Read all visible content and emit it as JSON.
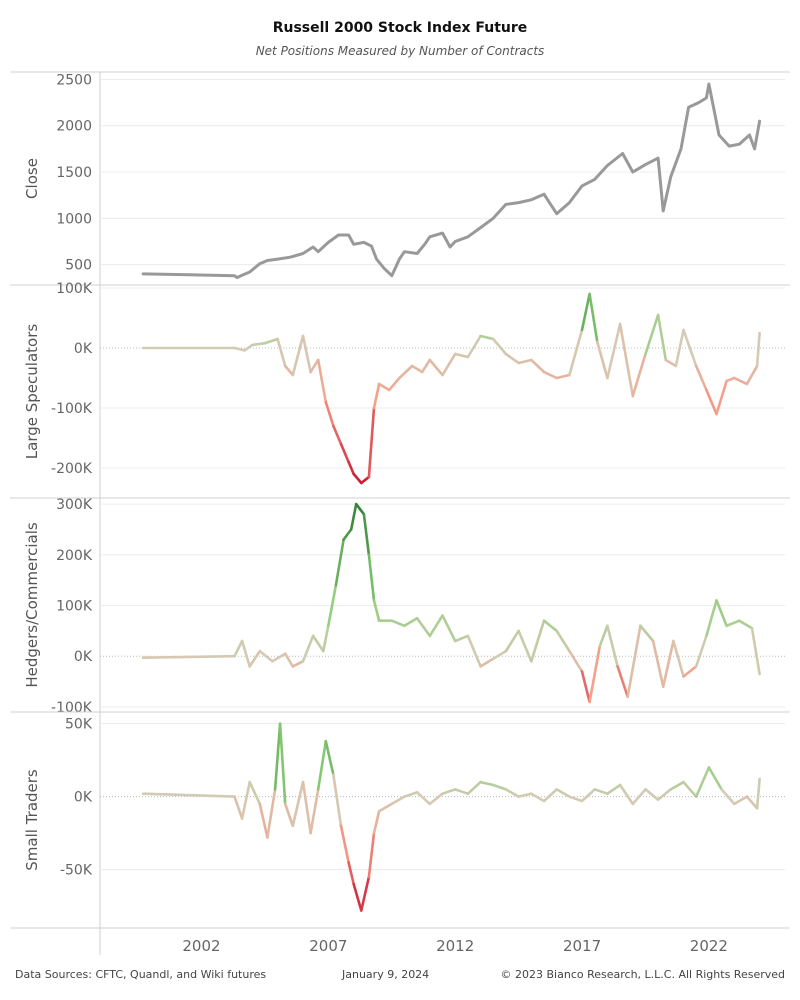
{
  "header": {
    "title": "Russell 2000 Stock Index Future",
    "subtitle": "Net Positions Measured by Number of Contracts"
  },
  "footer": {
    "sources": "Data Sources: CFTC, Quandl, and Wiki futures",
    "date": "January 9, 2024",
    "copyright": "© 2023 Bianco Research, L.L.C. All Rights Reserved"
  },
  "colors": {
    "close_line": "#999999",
    "positive_strong": "#2e7d32",
    "positive_light": "#8fd07a",
    "neutral": "#d4cbb5",
    "negative_light": "#f5a08a",
    "negative_strong": "#c8102e"
  },
  "chart_data": {
    "type": "line",
    "x_ticks": [
      2002,
      2007,
      2012,
      2017,
      2022
    ],
    "xlim": [
      1998,
      2025
    ],
    "panels": [
      {
        "ylabel": "Close",
        "ylim": [
          280,
          2580
        ],
        "yticks": [
          500,
          1000,
          1500,
          2000,
          2500
        ],
        "ytick_labels": [
          "500",
          "1000",
          "1500",
          "2000",
          "2500"
        ],
        "color_mode": "solid",
        "points": [
          [
            1999.7,
            400
          ],
          [
            2001.5,
            390
          ],
          [
            2003.3,
            380
          ],
          [
            2003.4,
            360
          ],
          [
            2003.6,
            385
          ],
          [
            2003.9,
            420
          ],
          [
            2004.3,
            510
          ],
          [
            2004.6,
            545
          ],
          [
            2005.0,
            560
          ],
          [
            2005.5,
            580
          ],
          [
            2006.0,
            620
          ],
          [
            2006.4,
            690
          ],
          [
            2006.6,
            640
          ],
          [
            2007.0,
            740
          ],
          [
            2007.4,
            820
          ],
          [
            2007.8,
            820
          ],
          [
            2008.0,
            720
          ],
          [
            2008.4,
            740
          ],
          [
            2008.7,
            700
          ],
          [
            2008.9,
            560
          ],
          [
            2009.2,
            460
          ],
          [
            2009.5,
            380
          ],
          [
            2009.8,
            560
          ],
          [
            2010.0,
            640
          ],
          [
            2010.5,
            620
          ],
          [
            2010.8,
            720
          ],
          [
            2011.0,
            800
          ],
          [
            2011.5,
            840
          ],
          [
            2011.8,
            690
          ],
          [
            2012.0,
            750
          ],
          [
            2012.5,
            800
          ],
          [
            2013.0,
            900
          ],
          [
            2013.5,
            1000
          ],
          [
            2014.0,
            1150
          ],
          [
            2014.5,
            1170
          ],
          [
            2015.0,
            1200
          ],
          [
            2015.5,
            1260
          ],
          [
            2016.0,
            1050
          ],
          [
            2016.5,
            1170
          ],
          [
            2017.0,
            1350
          ],
          [
            2017.5,
            1420
          ],
          [
            2018.0,
            1570
          ],
          [
            2018.6,
            1700
          ],
          [
            2019.0,
            1500
          ],
          [
            2019.5,
            1580
          ],
          [
            2020.0,
            1650
          ],
          [
            2020.2,
            1080
          ],
          [
            2020.5,
            1450
          ],
          [
            2020.9,
            1750
          ],
          [
            2021.2,
            2200
          ],
          [
            2021.6,
            2250
          ],
          [
            2021.9,
            2300
          ],
          [
            2022.0,
            2450
          ],
          [
            2022.4,
            1900
          ],
          [
            2022.8,
            1780
          ],
          [
            2023.2,
            1800
          ],
          [
            2023.6,
            1900
          ],
          [
            2023.8,
            1750
          ],
          [
            2024.0,
            2050
          ]
        ]
      },
      {
        "ylabel": "Large Speculators",
        "ylim": [
          -250000,
          105000
        ],
        "yticks": [
          100000,
          0,
          -100000,
          -200000
        ],
        "ytick_labels": [
          "100K",
          "0K",
          "-100K",
          "-200K"
        ],
        "color_mode": "diverging",
        "color_range": [
          -235000,
          100000
        ],
        "points": [
          [
            1999.7,
            0
          ],
          [
            2003.3,
            0
          ],
          [
            2003.7,
            -4000
          ],
          [
            2004.0,
            5000
          ],
          [
            2004.5,
            8000
          ],
          [
            2005.0,
            15000
          ],
          [
            2005.3,
            -30000
          ],
          [
            2005.6,
            -45000
          ],
          [
            2006.0,
            20000
          ],
          [
            2006.3,
            -40000
          ],
          [
            2006.6,
            -20000
          ],
          [
            2006.9,
            -90000
          ],
          [
            2007.2,
            -130000
          ],
          [
            2007.5,
            -160000
          ],
          [
            2007.8,
            -190000
          ],
          [
            2008.0,
            -210000
          ],
          [
            2008.3,
            -225000
          ],
          [
            2008.6,
            -215000
          ],
          [
            2008.8,
            -100000
          ],
          [
            2009.0,
            -60000
          ],
          [
            2009.4,
            -70000
          ],
          [
            2009.8,
            -50000
          ],
          [
            2010.3,
            -30000
          ],
          [
            2010.7,
            -40000
          ],
          [
            2011.0,
            -20000
          ],
          [
            2011.5,
            -45000
          ],
          [
            2012.0,
            -10000
          ],
          [
            2012.5,
            -15000
          ],
          [
            2013.0,
            20000
          ],
          [
            2013.5,
            15000
          ],
          [
            2014.0,
            -10000
          ],
          [
            2014.5,
            -25000
          ],
          [
            2015.0,
            -20000
          ],
          [
            2015.5,
            -40000
          ],
          [
            2016.0,
            -50000
          ],
          [
            2016.5,
            -45000
          ],
          [
            2017.0,
            30000
          ],
          [
            2017.3,
            90000
          ],
          [
            2017.6,
            10000
          ],
          [
            2018.0,
            -50000
          ],
          [
            2018.5,
            40000
          ],
          [
            2019.0,
            -80000
          ],
          [
            2019.5,
            -10000
          ],
          [
            2020.0,
            55000
          ],
          [
            2020.3,
            -20000
          ],
          [
            2020.7,
            -30000
          ],
          [
            2021.0,
            30000
          ],
          [
            2021.5,
            -30000
          ],
          [
            2021.9,
            -70000
          ],
          [
            2022.3,
            -110000
          ],
          [
            2022.7,
            -55000
          ],
          [
            2023.0,
            -50000
          ],
          [
            2023.5,
            -60000
          ],
          [
            2023.9,
            -30000
          ],
          [
            2024.0,
            25000
          ]
        ]
      },
      {
        "ylabel": "Hedgers/Commercials",
        "ylim": [
          -110000,
          312000
        ],
        "yticks": [
          300000,
          200000,
          100000,
          0,
          -100000
        ],
        "ytick_labels": [
          "300K",
          "200K",
          "100K",
          "0K",
          "-100K"
        ],
        "color_mode": "diverging",
        "color_range": [
          -100000,
          305000
        ],
        "points": [
          [
            1999.7,
            -3000
          ],
          [
            2003.3,
            0
          ],
          [
            2003.6,
            30000
          ],
          [
            2003.9,
            -20000
          ],
          [
            2004.3,
            10000
          ],
          [
            2004.8,
            -10000
          ],
          [
            2005.3,
            5000
          ],
          [
            2005.6,
            -20000
          ],
          [
            2006.0,
            -10000
          ],
          [
            2006.4,
            40000
          ],
          [
            2006.8,
            10000
          ],
          [
            2007.0,
            60000
          ],
          [
            2007.3,
            140000
          ],
          [
            2007.6,
            230000
          ],
          [
            2007.9,
            250000
          ],
          [
            2008.1,
            300000
          ],
          [
            2008.4,
            280000
          ],
          [
            2008.6,
            200000
          ],
          [
            2008.8,
            110000
          ],
          [
            2009.0,
            70000
          ],
          [
            2009.5,
            70000
          ],
          [
            2010.0,
            60000
          ],
          [
            2010.5,
            75000
          ],
          [
            2011.0,
            40000
          ],
          [
            2011.5,
            80000
          ],
          [
            2012.0,
            30000
          ],
          [
            2012.5,
            40000
          ],
          [
            2013.0,
            -20000
          ],
          [
            2013.5,
            -5000
          ],
          [
            2014.0,
            10000
          ],
          [
            2014.5,
            50000
          ],
          [
            2015.0,
            -10000
          ],
          [
            2015.5,
            70000
          ],
          [
            2016.0,
            50000
          ],
          [
            2016.5,
            10000
          ],
          [
            2017.0,
            -30000
          ],
          [
            2017.3,
            -90000
          ],
          [
            2017.7,
            20000
          ],
          [
            2018.0,
            60000
          ],
          [
            2018.4,
            -20000
          ],
          [
            2018.8,
            -80000
          ],
          [
            2019.3,
            60000
          ],
          [
            2019.8,
            30000
          ],
          [
            2020.2,
            -60000
          ],
          [
            2020.6,
            30000
          ],
          [
            2021.0,
            -40000
          ],
          [
            2021.5,
            -20000
          ],
          [
            2021.9,
            40000
          ],
          [
            2022.3,
            110000
          ],
          [
            2022.7,
            60000
          ],
          [
            2023.2,
            70000
          ],
          [
            2023.7,
            55000
          ],
          [
            2024.0,
            -35000
          ]
        ]
      },
      {
        "ylabel": "Small Traders",
        "ylim": [
          -90000,
          58000
        ],
        "yticks": [
          50000,
          0,
          -50000
        ],
        "ytick_labels": [
          "50K",
          "0K",
          "-50K"
        ],
        "color_mode": "diverging",
        "color_range": [
          -82000,
          52000
        ],
        "points": [
          [
            1999.7,
            2000
          ],
          [
            2003.3,
            0
          ],
          [
            2003.6,
            -15000
          ],
          [
            2003.9,
            10000
          ],
          [
            2004.3,
            -5000
          ],
          [
            2004.6,
            -28000
          ],
          [
            2004.9,
            5000
          ],
          [
            2005.1,
            50000
          ],
          [
            2005.3,
            -5000
          ],
          [
            2005.6,
            -20000
          ],
          [
            2006.0,
            10000
          ],
          [
            2006.3,
            -25000
          ],
          [
            2006.6,
            5000
          ],
          [
            2006.9,
            38000
          ],
          [
            2007.2,
            15000
          ],
          [
            2007.5,
            -20000
          ],
          [
            2007.8,
            -45000
          ],
          [
            2008.0,
            -60000
          ],
          [
            2008.3,
            -78000
          ],
          [
            2008.6,
            -55000
          ],
          [
            2008.8,
            -25000
          ],
          [
            2009.0,
            -10000
          ],
          [
            2009.5,
            -5000
          ],
          [
            2010.0,
            0
          ],
          [
            2010.5,
            3000
          ],
          [
            2011.0,
            -5000
          ],
          [
            2011.5,
            2000
          ],
          [
            2012.0,
            5000
          ],
          [
            2012.5,
            2000
          ],
          [
            2013.0,
            10000
          ],
          [
            2013.5,
            8000
          ],
          [
            2014.0,
            5000
          ],
          [
            2014.5,
            0
          ],
          [
            2015.0,
            2000
          ],
          [
            2015.5,
            -3000
          ],
          [
            2016.0,
            5000
          ],
          [
            2016.5,
            0
          ],
          [
            2017.0,
            -3000
          ],
          [
            2017.5,
            5000
          ],
          [
            2018.0,
            2000
          ],
          [
            2018.5,
            8000
          ],
          [
            2019.0,
            -5000
          ],
          [
            2019.5,
            5000
          ],
          [
            2020.0,
            -2000
          ],
          [
            2020.5,
            5000
          ],
          [
            2021.0,
            10000
          ],
          [
            2021.5,
            0
          ],
          [
            2022.0,
            20000
          ],
          [
            2022.5,
            5000
          ],
          [
            2023.0,
            -5000
          ],
          [
            2023.5,
            0
          ],
          [
            2023.9,
            -8000
          ],
          [
            2024.0,
            12000
          ]
        ]
      }
    ]
  }
}
